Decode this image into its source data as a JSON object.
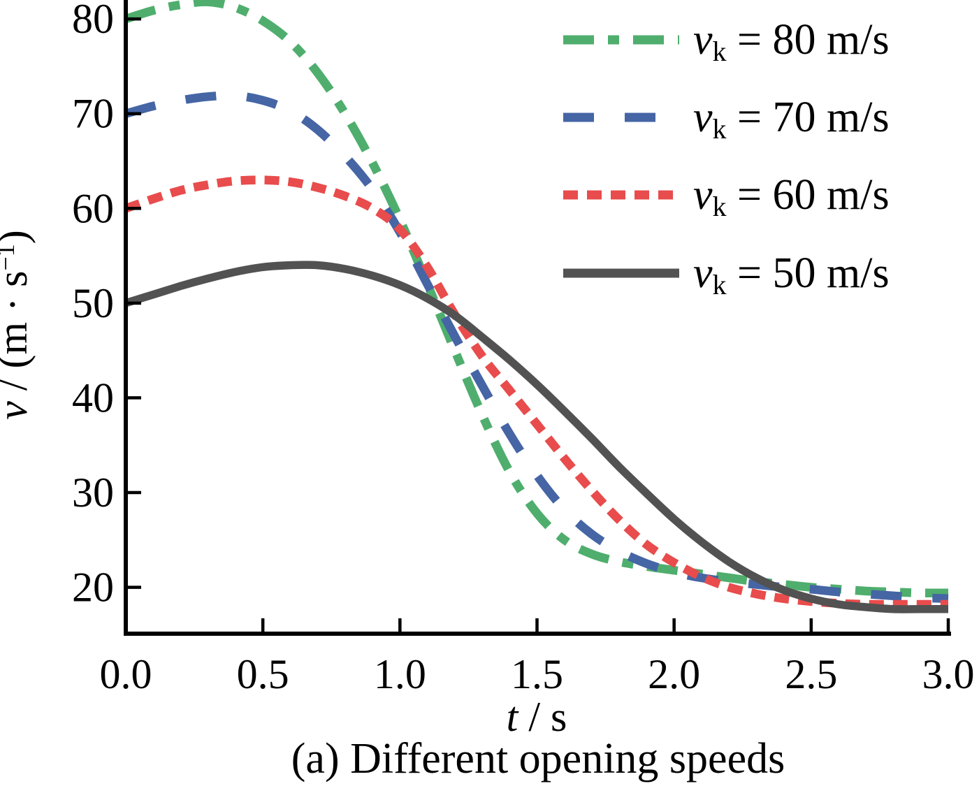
{
  "figure": {
    "caption": "(a) Different opening speeds"
  },
  "chart_data": {
    "type": "line",
    "title": "",
    "xlabel_parts": {
      "var": "t",
      "rest": " / s"
    },
    "ylabel_parts": {
      "var": "v",
      "mid": " / (m · s",
      "sup": "−1",
      "end": ")"
    },
    "xlim": [
      0,
      3
    ],
    "ylim": [
      15.1,
      82
    ],
    "grid": false,
    "legend_position": "upper right",
    "axis_color": "#000000",
    "x_ticks": [
      0.0,
      0.5,
      1.0,
      1.5,
      2.0,
      2.5,
      3.0
    ],
    "x_tick_labels": [
      "0.0",
      "0.5",
      "1.0",
      "1.5",
      "2.0",
      "2.5",
      "3.0"
    ],
    "y_ticks": [
      20,
      30,
      40,
      50,
      60,
      70,
      80
    ],
    "y_tick_labels": [
      "20",
      "30",
      "40",
      "50",
      "60",
      "70",
      "80"
    ],
    "t": [
      0,
      0.1,
      0.2,
      0.3,
      0.4,
      0.5,
      0.6,
      0.7,
      0.8,
      0.9,
      1.0,
      1.1,
      1.2,
      1.3,
      1.4,
      1.5,
      1.6,
      1.7,
      1.8,
      1.9,
      2.0,
      2.1,
      2.2,
      2.3,
      2.4,
      2.5,
      2.6,
      2.7,
      2.8,
      2.9,
      3.0
    ],
    "series": [
      {
        "name": "v_k = 80 m/s",
        "legend": {
          "var": "v",
          "sub": "k",
          "rest": " = 80 m/s"
        },
        "color": "#4fae6d",
        "dash": [
          44,
          20,
          16,
          20
        ],
        "width": 12.5,
        "values": [
          80,
          80.9,
          81.5,
          81.8,
          81.2,
          79.8,
          77.6,
          74.3,
          70,
          64.8,
          58.8,
          52,
          45,
          38.2,
          32.2,
          27.8,
          25,
          23.5,
          22.7,
          22.2,
          21.8,
          21.4,
          21,
          20.6,
          20.3,
          20,
          19.8,
          19.6,
          19.5,
          19.4,
          19.4
        ]
      },
      {
        "name": "v_k = 70 m/s",
        "legend": {
          "var": "v",
          "sub": "k",
          "rest": " = 70 m/s"
        },
        "color": "#4565a5",
        "dash": [
          44,
          44
        ],
        "width": 12.5,
        "values": [
          70,
          70.8,
          71.4,
          71.8,
          71.9,
          71.4,
          70.3,
          68.3,
          65.5,
          62,
          57.5,
          52,
          46.5,
          41.3,
          36.2,
          31.8,
          28.2,
          25.6,
          23.8,
          22.5,
          21.6,
          21,
          20.6,
          20.3,
          20,
          19.8,
          19.5,
          19.3,
          19.1,
          18.9,
          18.8
        ]
      },
      {
        "name": "v_k = 60 m/s",
        "legend": {
          "var": "v",
          "sub": "k",
          "rest": " = 60 m/s"
        },
        "color": "#e84c4c",
        "dash": [
          21,
          13
        ],
        "width": 12.5,
        "values": [
          60,
          61,
          61.9,
          62.5,
          62.9,
          63,
          62.8,
          62.2,
          61.3,
          60,
          57.8,
          53.8,
          48.8,
          44.4,
          40.8,
          37.2,
          33.6,
          30.2,
          27.1,
          24.5,
          22.6,
          21.1,
          20,
          19.3,
          18.8,
          18.5,
          18.3,
          18.2,
          18.2,
          18.2,
          18.2
        ]
      },
      {
        "name": "v_k = 50 m/s",
        "legend": {
          "var": "v",
          "sub": "k",
          "rest": " = 50 m/s"
        },
        "color": "#525252",
        "dash": [],
        "width": 11.5,
        "values": [
          50,
          50.9,
          51.8,
          52.6,
          53.3,
          53.8,
          54,
          54,
          53.6,
          52.9,
          51.9,
          50.5,
          48.7,
          46.4,
          44,
          41.4,
          38.6,
          35.7,
          32.7,
          29.9,
          27.2,
          24.8,
          22.7,
          21,
          19.7,
          18.8,
          18.2,
          17.9,
          17.7,
          17.7,
          17.7
        ]
      }
    ]
  }
}
